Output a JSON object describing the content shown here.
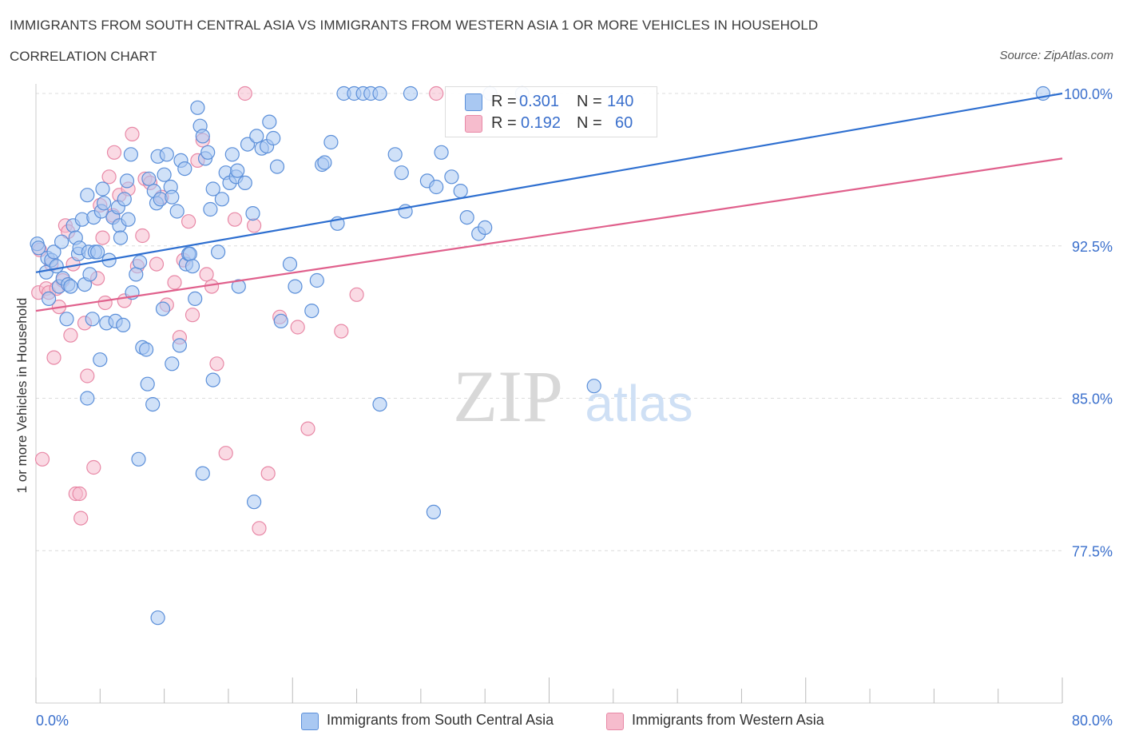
{
  "header": {
    "title": "IMMIGRANTS FROM SOUTH CENTRAL ASIA VS IMMIGRANTS FROM WESTERN ASIA 1 OR MORE VEHICLES IN HOUSEHOLD",
    "subtitle": "CORRELATION CHART",
    "source": "Source: ZipAtlas.com"
  },
  "watermark": {
    "zip": "ZIP",
    "atlas": "atlas"
  },
  "legend": {
    "r_label": "R =",
    "n_label": "N =",
    "series1": {
      "r": "0.301",
      "n": "140"
    },
    "series2": {
      "r": "0.192",
      "n": "60"
    }
  },
  "bottom_legend": {
    "series1": "Immigrants from South Central Asia",
    "series2": "Immigrants from Western Asia"
  },
  "chart_data": {
    "type": "scatter",
    "title": "IMMIGRANTS FROM SOUTH CENTRAL ASIA VS IMMIGRANTS FROM WESTERN ASIA 1 OR MORE VEHICLES IN HOUSEHOLD",
    "subtitle": "CORRELATION CHART",
    "xlabel": "",
    "ylabel": "1 or more Vehicles in Household",
    "xlim": [
      0,
      80
    ],
    "ylim": [
      70,
      100.5
    ],
    "x_tick_labels": [
      {
        "value": 0,
        "label": "0.0%"
      },
      {
        "value": 80,
        "label": "80.0%"
      }
    ],
    "y_tick_labels": [
      {
        "value": 100,
        "label": "100.0%"
      },
      {
        "value": 92.5,
        "label": "92.5%"
      },
      {
        "value": 85,
        "label": "85.0%"
      },
      {
        "value": 77.5,
        "label": "77.5%"
      }
    ],
    "grid": true,
    "legend_position": "top-center",
    "colors": {
      "series1_fill": "#a9c8f2",
      "series1_stroke": "#5b8fd9",
      "series1_line": "#2e6fd0",
      "series2_fill": "#f6bccd",
      "series2_stroke": "#e888a6",
      "series2_line": "#e0608c",
      "tick_text": "#3a6fcc",
      "grid": "#dcdcdc"
    },
    "series": [
      {
        "name": "Immigrants from South Central Asia",
        "R": 0.301,
        "N": 140,
        "trend": {
          "x": [
            0,
            80
          ],
          "y": [
            91.2,
            100.0
          ]
        },
        "points": [
          [
            0.1,
            92.6
          ],
          [
            0.2,
            92.4
          ],
          [
            0.8,
            91.2
          ],
          [
            0.9,
            91.9
          ],
          [
            1.0,
            89.9
          ],
          [
            1.2,
            91.8
          ],
          [
            1.4,
            92.2
          ],
          [
            1.6,
            91.5
          ],
          [
            1.8,
            90.5
          ],
          [
            2.0,
            92.7
          ],
          [
            2.1,
            90.9
          ],
          [
            2.4,
            88.9
          ],
          [
            2.5,
            90.6
          ],
          [
            2.7,
            90.5
          ],
          [
            2.9,
            93.5
          ],
          [
            3.1,
            92.9
          ],
          [
            3.3,
            92.1
          ],
          [
            3.4,
            92.4
          ],
          [
            3.6,
            93.8
          ],
          [
            3.8,
            90.6
          ],
          [
            4.0,
            95.0
          ],
          [
            4.1,
            92.2
          ],
          [
            4.2,
            91.1
          ],
          [
            4.4,
            88.9
          ],
          [
            4.5,
            93.9
          ],
          [
            4.6,
            92.2
          ],
          [
            4.8,
            92.2
          ],
          [
            5.1,
            94.2
          ],
          [
            5.2,
            95.3
          ],
          [
            5.3,
            94.6
          ],
          [
            5.5,
            88.7
          ],
          [
            5.7,
            91.8
          ],
          [
            6.0,
            93.9
          ],
          [
            6.2,
            88.8
          ],
          [
            6.4,
            94.4
          ],
          [
            6.5,
            93.5
          ],
          [
            6.6,
            92.9
          ],
          [
            6.9,
            94.8
          ],
          [
            7.1,
            95.7
          ],
          [
            7.2,
            93.8
          ],
          [
            7.4,
            97.0
          ],
          [
            7.5,
            90.2
          ],
          [
            7.8,
            91.1
          ],
          [
            8.1,
            91.7
          ],
          [
            8.3,
            87.5
          ],
          [
            8.6,
            87.4
          ],
          [
            8.8,
            95.8
          ],
          [
            9.1,
            84.7
          ],
          [
            9.2,
            95.2
          ],
          [
            9.4,
            94.6
          ],
          [
            9.5,
            96.9
          ],
          [
            9.7,
            94.8
          ],
          [
            10.0,
            96.0
          ],
          [
            10.2,
            97.0
          ],
          [
            10.5,
            95.4
          ],
          [
            10.6,
            94.9
          ],
          [
            11.0,
            94.2
          ],
          [
            11.3,
            96.7
          ],
          [
            11.6,
            96.3
          ],
          [
            11.7,
            91.6
          ],
          [
            11.9,
            92.1
          ],
          [
            12.0,
            92.1
          ],
          [
            12.2,
            91.5
          ],
          [
            12.6,
            99.3
          ],
          [
            12.8,
            98.4
          ],
          [
            13.0,
            97.9
          ],
          [
            13.2,
            96.8
          ],
          [
            13.4,
            97.1
          ],
          [
            13.6,
            94.3
          ],
          [
            13.8,
            95.3
          ],
          [
            14.2,
            92.2
          ],
          [
            14.5,
            94.8
          ],
          [
            14.8,
            96.1
          ],
          [
            15.1,
            95.6
          ],
          [
            15.3,
            97.0
          ],
          [
            15.6,
            95.9
          ],
          [
            15.7,
            96.2
          ],
          [
            16.3,
            95.6
          ],
          [
            16.5,
            97.5
          ],
          [
            16.9,
            94.1
          ],
          [
            17.2,
            97.9
          ],
          [
            17.6,
            97.3
          ],
          [
            18.0,
            97.4
          ],
          [
            18.2,
            98.6
          ],
          [
            18.5,
            97.8
          ],
          [
            18.8,
            96.4
          ],
          [
            19.1,
            88.8
          ],
          [
            19.8,
            91.6
          ],
          [
            20.2,
            90.5
          ],
          [
            21.5,
            89.3
          ],
          [
            21.9,
            90.8
          ],
          [
            22.3,
            96.5
          ],
          [
            22.5,
            96.6
          ],
          [
            23.0,
            97.6
          ],
          [
            23.5,
            93.6
          ],
          [
            24.0,
            100.0
          ],
          [
            24.8,
            100.0
          ],
          [
            25.5,
            100.0
          ],
          [
            26.1,
            100.0
          ],
          [
            26.8,
            100.0
          ],
          [
            28.0,
            97.0
          ],
          [
            28.5,
            96.1
          ],
          [
            28.8,
            94.2
          ],
          [
            29.2,
            100.0
          ],
          [
            30.5,
            95.7
          ],
          [
            31.2,
            95.4
          ],
          [
            31.6,
            97.1
          ],
          [
            32.4,
            95.9
          ],
          [
            33.1,
            95.2
          ],
          [
            33.6,
            93.9
          ],
          [
            34.5,
            93.1
          ],
          [
            35.0,
            93.4
          ],
          [
            37.9,
            100.0
          ],
          [
            43.5,
            85.6
          ],
          [
            35.4,
            100.0
          ],
          [
            78.5,
            100.0
          ],
          [
            8.0,
            82.0
          ],
          [
            9.5,
            74.2
          ],
          [
            13.0,
            81.3
          ],
          [
            17.0,
            79.9
          ],
          [
            31.0,
            79.4
          ],
          [
            26.8,
            84.7
          ],
          [
            10.6,
            86.7
          ],
          [
            13.8,
            85.9
          ],
          [
            5.0,
            86.9
          ],
          [
            4.0,
            85.0
          ],
          [
            8.7,
            85.7
          ],
          [
            12.4,
            89.9
          ],
          [
            15.8,
            90.5
          ],
          [
            11.2,
            87.6
          ],
          [
            9.9,
            89.4
          ],
          [
            6.8,
            88.6
          ]
        ]
      },
      {
        "name": "Immigrants from Western Asia",
        "R": 0.192,
        "N": 60,
        "trend": {
          "x": [
            0,
            80
          ],
          "y": [
            89.3,
            96.8
          ]
        },
        "points": [
          [
            0.2,
            90.2
          ],
          [
            0.3,
            92.3
          ],
          [
            0.5,
            82.0
          ],
          [
            0.8,
            90.4
          ],
          [
            1.0,
            90.2
          ],
          [
            1.2,
            91.6
          ],
          [
            1.4,
            87.0
          ],
          [
            1.6,
            90.4
          ],
          [
            1.8,
            89.5
          ],
          [
            2.1,
            90.8
          ],
          [
            2.3,
            93.5
          ],
          [
            2.5,
            93.2
          ],
          [
            2.7,
            88.1
          ],
          [
            2.9,
            91.6
          ],
          [
            3.1,
            80.3
          ],
          [
            3.4,
            80.3
          ],
          [
            3.5,
            79.1
          ],
          [
            3.8,
            88.7
          ],
          [
            4.0,
            86.1
          ],
          [
            4.5,
            81.6
          ],
          [
            4.8,
            90.9
          ],
          [
            5.0,
            94.5
          ],
          [
            5.2,
            92.9
          ],
          [
            5.4,
            89.7
          ],
          [
            5.7,
            95.9
          ],
          [
            6.0,
            94.0
          ],
          [
            6.1,
            97.1
          ],
          [
            6.5,
            95.0
          ],
          [
            6.9,
            89.8
          ],
          [
            7.2,
            95.3
          ],
          [
            7.5,
            98.0
          ],
          [
            7.9,
            91.5
          ],
          [
            8.3,
            93.0
          ],
          [
            8.5,
            95.8
          ],
          [
            8.9,
            95.6
          ],
          [
            9.4,
            91.6
          ],
          [
            9.8,
            94.9
          ],
          [
            10.2,
            89.6
          ],
          [
            10.8,
            90.7
          ],
          [
            11.2,
            88.0
          ],
          [
            11.5,
            91.8
          ],
          [
            11.9,
            93.7
          ],
          [
            12.2,
            89.1
          ],
          [
            12.6,
            96.7
          ],
          [
            13.0,
            97.7
          ],
          [
            13.3,
            91.1
          ],
          [
            13.7,
            90.5
          ],
          [
            14.1,
            86.7
          ],
          [
            14.8,
            82.3
          ],
          [
            15.5,
            93.8
          ],
          [
            16.3,
            100.0
          ],
          [
            17.0,
            93.5
          ],
          [
            17.4,
            78.6
          ],
          [
            18.1,
            81.3
          ],
          [
            19.0,
            89.0
          ],
          [
            20.4,
            88.5
          ],
          [
            21.2,
            83.5
          ],
          [
            23.8,
            88.3
          ],
          [
            25.0,
            90.1
          ],
          [
            31.2,
            100.0
          ]
        ]
      }
    ]
  }
}
